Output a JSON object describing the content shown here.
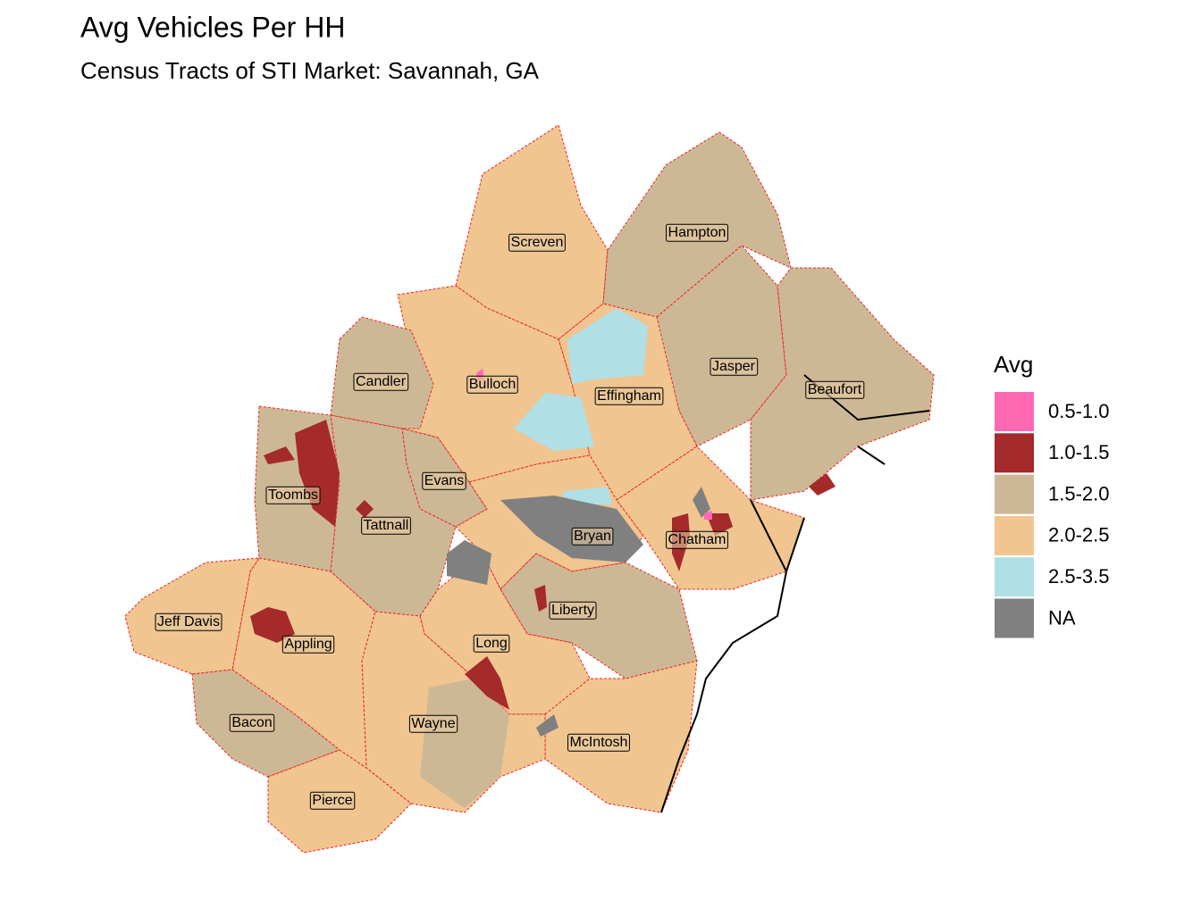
{
  "title": "Avg Vehicles Per HH",
  "subtitle": "Census Tracts of STI Market: Savannah, GA",
  "legend": {
    "title": "Avg",
    "items": [
      {
        "label": "0.5-1.0",
        "color": "#ff69b4"
      },
      {
        "label": "1.0-1.5",
        "color": "#a52a2a"
      },
      {
        "label": "1.5-2.0",
        "color": "#cdb896"
      },
      {
        "label": "2.0-2.5",
        "color": "#f0c590"
      },
      {
        "label": "2.5-3.5",
        "color": "#b0dfe5"
      },
      {
        "label": "NA",
        "color": "#808080"
      }
    ]
  },
  "counties": [
    "Screven",
    "Hampton",
    "Jasper",
    "Beaufort",
    "Effingham",
    "Bulloch",
    "Candler",
    "Toombs",
    "Evans",
    "Tattnall",
    "Bryan",
    "Chatham",
    "Liberty",
    "Long",
    "McIntosh",
    "Wayne",
    "Appling",
    "Jeff Davis",
    "Bacon",
    "Pierce"
  ]
}
